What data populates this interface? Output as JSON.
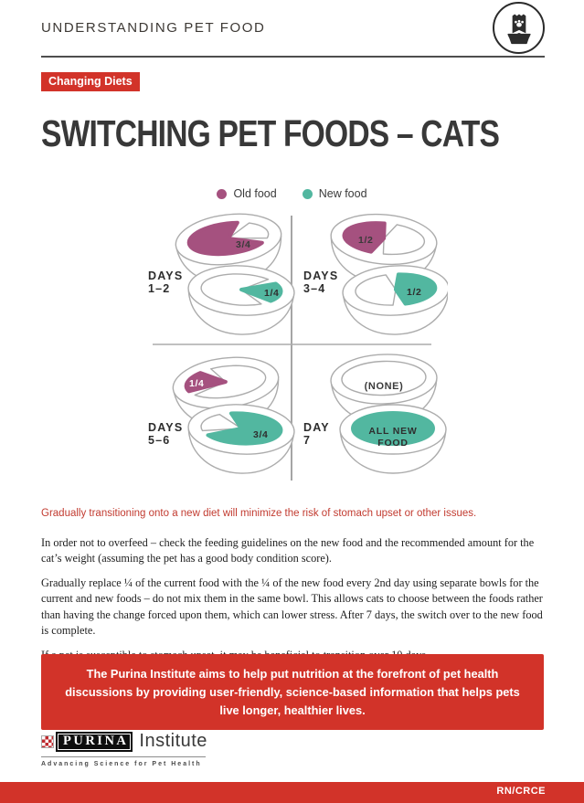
{
  "colors": {
    "accent_red": "#D23329",
    "old_food": "#A5517F",
    "new_food": "#52B7A0",
    "intro_red": "#C23B30",
    "bowl_outline": "#ACACAC",
    "checker_red": "#BE2A2E"
  },
  "header": {
    "title": "UNDERSTANDING PET FOOD",
    "icon": "pet-food-bag-and-bowl"
  },
  "badge": {
    "label": "Changing Diets"
  },
  "title": "SWITCHING PET FOODS – CATS",
  "legend": {
    "items": [
      {
        "label": "Old food",
        "color_key": "old_food"
      },
      {
        "label": "New food",
        "color_key": "new_food"
      }
    ]
  },
  "diagram": {
    "quadrants": [
      {
        "period": "DAYS",
        "range": "1–2",
        "bowls": [
          {
            "food": "old",
            "fraction": "3/4"
          },
          {
            "food": "new",
            "fraction": "1/4"
          }
        ]
      },
      {
        "period": "DAYS",
        "range": "3–4",
        "bowls": [
          {
            "food": "old",
            "fraction": "1/2"
          },
          {
            "food": "new",
            "fraction": "1/2"
          }
        ]
      },
      {
        "period": "DAYS",
        "range": "5–6",
        "bowls": [
          {
            "food": "old",
            "fraction": "1/4"
          },
          {
            "food": "new",
            "fraction": "3/4"
          }
        ]
      },
      {
        "period": "DAY",
        "range": "7",
        "bowls": [
          {
            "food": "none",
            "label": "(NONE)"
          },
          {
            "food": "new",
            "fraction": "all",
            "label": "ALL NEW FOOD"
          }
        ]
      }
    ]
  },
  "intro": "Gradually transitioning onto a new diet will minimize the risk of stomach upset or other issues.",
  "paragraphs": [
    "In order not to overfeed – check the feeding guidelines on the new food and the recommended amount for the cat’s weight (assuming the pet has a good body condition score).",
    "Gradually replace ¼ of the current food with the ¼ of the new food every 2nd day using separate bowls for the current and new foods – do not mix them in the same bowl. This allows cats to choose between the foods rather than having the change forced upon them, which can lower stress. After 7 days, the switch over to the new food is complete.",
    "If a pet is susceptible to stomach upset, it may be beneficial to transition over 10 days."
  ],
  "banner": {
    "text": "The Purina Institute aims to help put nutrition at the forefront of pet health discussions by providing user-friendly, science-based information that helps pets live longer, healthier lives."
  },
  "logo": {
    "brand": "PURINA",
    "suffix": "Institute",
    "tagline": "Advancing Science for Pet Health"
  },
  "footer": {
    "code": "RN/CRCE"
  }
}
